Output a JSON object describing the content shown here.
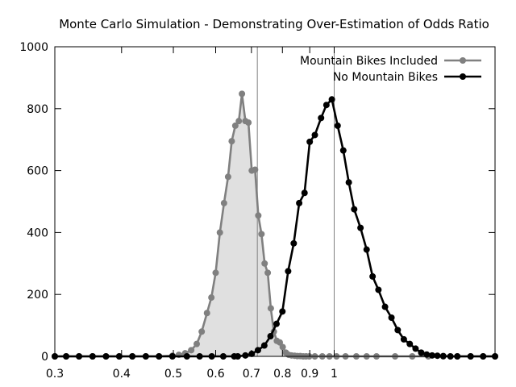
{
  "chart_data": {
    "type": "line",
    "title": "Monte Carlo Simulation - Demonstrating Over-Estimation of Odds Ratio",
    "xlabel": "",
    "ylabel": "",
    "x_scale": "log",
    "xlim": [
      0.3,
      2.0
    ],
    "ylim": [
      0,
      1000
    ],
    "x_ticks": [
      0.3,
      0.4,
      0.5,
      0.6,
      0.7,
      0.8,
      0.9,
      1
    ],
    "x_tick_labels": [
      "0.3",
      "0.4",
      "0.5",
      "0.6",
      "0.7",
      "0.8",
      "0.9",
      "1"
    ],
    "y_ticks": [
      0,
      200,
      400,
      600,
      800,
      1000
    ],
    "y_tick_labels": [
      "0",
      "200",
      "400",
      "600",
      "800",
      "1000"
    ],
    "grid": false,
    "legend_position": "top-right",
    "reference_lines_x": [
      0.718,
      1.0
    ],
    "series": [
      {
        "name": "Mountain Bikes Included",
        "color": "#808080",
        "fill": "#e0e0e0",
        "points": [
          [
            0.3,
            0
          ],
          [
            0.315,
            0
          ],
          [
            0.333,
            0
          ],
          [
            0.353,
            0
          ],
          [
            0.374,
            0
          ],
          [
            0.396,
            0
          ],
          [
            0.419,
            0
          ],
          [
            0.444,
            0
          ],
          [
            0.47,
            0
          ],
          [
            0.498,
            2
          ],
          [
            0.512,
            5
          ],
          [
            0.526,
            10
          ],
          [
            0.54,
            20
          ],
          [
            0.553,
            40
          ],
          [
            0.565,
            80
          ],
          [
            0.578,
            140
          ],
          [
            0.589,
            190
          ],
          [
            0.6,
            270
          ],
          [
            0.611,
            400
          ],
          [
            0.622,
            495
          ],
          [
            0.633,
            580
          ],
          [
            0.643,
            695
          ],
          [
            0.653,
            745
          ],
          [
            0.663,
            760
          ],
          [
            0.672,
            848
          ],
          [
            0.682,
            760
          ],
          [
            0.691,
            755
          ],
          [
            0.701,
            600
          ],
          [
            0.711,
            603
          ],
          [
            0.721,
            455
          ],
          [
            0.731,
            395
          ],
          [
            0.741,
            300
          ],
          [
            0.751,
            270
          ],
          [
            0.761,
            155
          ],
          [
            0.771,
            80
          ],
          [
            0.781,
            50
          ],
          [
            0.791,
            45
          ],
          [
            0.801,
            30
          ],
          [
            0.812,
            12
          ],
          [
            0.822,
            5
          ],
          [
            0.832,
            3
          ],
          [
            0.843,
            2
          ],
          [
            0.853,
            1
          ],
          [
            0.864,
            1
          ],
          [
            0.875,
            0
          ],
          [
            0.886,
            0
          ],
          [
            0.898,
            0
          ],
          [
            0.92,
            0
          ],
          [
            0.95,
            0
          ],
          [
            0.98,
            0
          ],
          [
            1.01,
            0
          ],
          [
            1.05,
            0
          ],
          [
            1.1,
            0
          ],
          [
            1.15,
            0
          ],
          [
            1.2,
            0
          ],
          [
            1.3,
            0
          ],
          [
            1.4,
            0
          ],
          [
            1.5,
            0
          ],
          [
            1.6,
            0
          ],
          [
            1.7,
            0
          ],
          [
            1.8,
            0
          ],
          [
            1.9,
            0
          ],
          [
            2.0,
            0
          ]
        ]
      },
      {
        "name": "No Mountain Bikes",
        "color": "#000000",
        "points": [
          [
            0.3,
            0
          ],
          [
            0.315,
            0
          ],
          [
            0.333,
            0
          ],
          [
            0.353,
            0
          ],
          [
            0.374,
            0
          ],
          [
            0.396,
            0
          ],
          [
            0.419,
            0
          ],
          [
            0.444,
            0
          ],
          [
            0.47,
            0
          ],
          [
            0.498,
            0
          ],
          [
            0.53,
            0
          ],
          [
            0.56,
            0
          ],
          [
            0.59,
            0
          ],
          [
            0.62,
            0
          ],
          [
            0.65,
            0
          ],
          [
            0.66,
            0
          ],
          [
            0.682,
            3
          ],
          [
            0.701,
            8
          ],
          [
            0.72,
            20
          ],
          [
            0.74,
            35
          ],
          [
            0.76,
            65
          ],
          [
            0.78,
            105
          ],
          [
            0.8,
            145
          ],
          [
            0.82,
            275
          ],
          [
            0.84,
            365
          ],
          [
            0.86,
            495
          ],
          [
            0.88,
            528
          ],
          [
            0.9,
            693
          ],
          [
            0.92,
            715
          ],
          [
            0.945,
            770
          ],
          [
            0.967,
            812
          ],
          [
            0.99,
            830
          ],
          [
            1.015,
            745
          ],
          [
            1.04,
            665
          ],
          [
            1.065,
            562
          ],
          [
            1.09,
            475
          ],
          [
            1.12,
            415
          ],
          [
            1.15,
            345
          ],
          [
            1.18,
            258
          ],
          [
            1.21,
            215
          ],
          [
            1.245,
            160
          ],
          [
            1.28,
            125
          ],
          [
            1.315,
            85
          ],
          [
            1.35,
            55
          ],
          [
            1.385,
            40
          ],
          [
            1.42,
            25
          ],
          [
            1.455,
            12
          ],
          [
            1.49,
            6
          ],
          [
            1.525,
            3
          ],
          [
            1.56,
            2
          ],
          [
            1.6,
            1
          ],
          [
            1.65,
            0
          ],
          [
            1.7,
            0
          ],
          [
            1.8,
            0
          ],
          [
            1.9,
            0
          ],
          [
            2.0,
            0
          ]
        ]
      }
    ]
  }
}
